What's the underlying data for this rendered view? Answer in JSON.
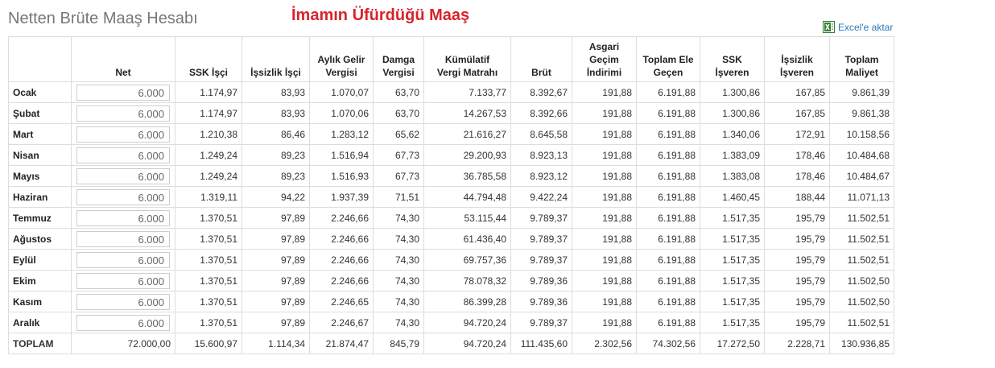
{
  "header": {
    "title": "Netten Brüte Maaş Hesabı",
    "subtitle": "İmamın Üfürdüğü Maaş",
    "export_link": "Excel'e aktar"
  },
  "table": {
    "columns": [
      [
        "Net"
      ],
      [
        "SSK İşçi"
      ],
      [
        "İşsizlik İşçi"
      ],
      [
        "Aylık Gelir",
        "Vergisi"
      ],
      [
        "Damga",
        "Vergisi"
      ],
      [
        "Kümülatif",
        "Vergi Matrahı"
      ],
      [
        "Brüt"
      ],
      [
        "Asgari",
        "Geçim",
        "İndirimi"
      ],
      [
        "Toplam Ele",
        "Geçen"
      ],
      [
        "SSK İşveren"
      ],
      [
        "İşsizlik",
        "İşveren"
      ],
      [
        "Toplam",
        "Maliyet"
      ]
    ],
    "rows": [
      [
        "Ocak",
        "6.000",
        "1.174,97",
        "83,93",
        "1.070,07",
        "63,70",
        "7.133,77",
        "8.392,67",
        "191,88",
        "6.191,88",
        "1.300,86",
        "167,85",
        "9.861,39"
      ],
      [
        "Şubat",
        "6.000",
        "1.174,97",
        "83,93",
        "1.070,06",
        "63,70",
        "14.267,53",
        "8.392,66",
        "191,88",
        "6.191,88",
        "1.300,86",
        "167,85",
        "9.861,38"
      ],
      [
        "Mart",
        "6.000",
        "1.210,38",
        "86,46",
        "1.283,12",
        "65,62",
        "21.616,27",
        "8.645,58",
        "191,88",
        "6.191,88",
        "1.340,06",
        "172,91",
        "10.158,56"
      ],
      [
        "Nisan",
        "6.000",
        "1.249,24",
        "89,23",
        "1.516,94",
        "67,73",
        "29.200,93",
        "8.923,13",
        "191,88",
        "6.191,88",
        "1.383,09",
        "178,46",
        "10.484,68"
      ],
      [
        "Mayıs",
        "6.000",
        "1.249,24",
        "89,23",
        "1.516,93",
        "67,73",
        "36.785,58",
        "8.923,12",
        "191,88",
        "6.191,88",
        "1.383,08",
        "178,46",
        "10.484,67"
      ],
      [
        "Haziran",
        "6.000",
        "1.319,11",
        "94,22",
        "1.937,39",
        "71,51",
        "44.794,48",
        "9.422,24",
        "191,88",
        "6.191,88",
        "1.460,45",
        "188,44",
        "11.071,13"
      ],
      [
        "Temmuz",
        "6.000",
        "1.370,51",
        "97,89",
        "2.246,66",
        "74,30",
        "53.115,44",
        "9.789,37",
        "191,88",
        "6.191,88",
        "1.517,35",
        "195,79",
        "11.502,51"
      ],
      [
        "Ağustos",
        "6.000",
        "1.370,51",
        "97,89",
        "2.246,66",
        "74,30",
        "61.436,40",
        "9.789,37",
        "191,88",
        "6.191,88",
        "1.517,35",
        "195,79",
        "11.502,51"
      ],
      [
        "Eylül",
        "6.000",
        "1.370,51",
        "97,89",
        "2.246,66",
        "74,30",
        "69.757,36",
        "9.789,37",
        "191,88",
        "6.191,88",
        "1.517,35",
        "195,79",
        "11.502,51"
      ],
      [
        "Ekim",
        "6.000",
        "1.370,51",
        "97,89",
        "2.246,66",
        "74,30",
        "78.078,32",
        "9.789,36",
        "191,88",
        "6.191,88",
        "1.517,35",
        "195,79",
        "11.502,50"
      ],
      [
        "Kasım",
        "6.000",
        "1.370,51",
        "97,89",
        "2.246,65",
        "74,30",
        "86.399,28",
        "9.789,36",
        "191,88",
        "6.191,88",
        "1.517,35",
        "195,79",
        "11.502,50"
      ],
      [
        "Aralık",
        "6.000",
        "1.370,51",
        "97,89",
        "2.246,67",
        "74,30",
        "94.720,24",
        "9.789,37",
        "191,88",
        "6.191,88",
        "1.517,35",
        "195,79",
        "11.502,51"
      ]
    ],
    "total": [
      "TOPLAM",
      "72.000,00",
      "15.600,97",
      "1.114,34",
      "21.874,47",
      "845,79",
      "94.720,24",
      "111.435,60",
      "2.302,56",
      "74.302,56",
      "17.272,50",
      "2.228,71",
      "130.936,85"
    ]
  }
}
